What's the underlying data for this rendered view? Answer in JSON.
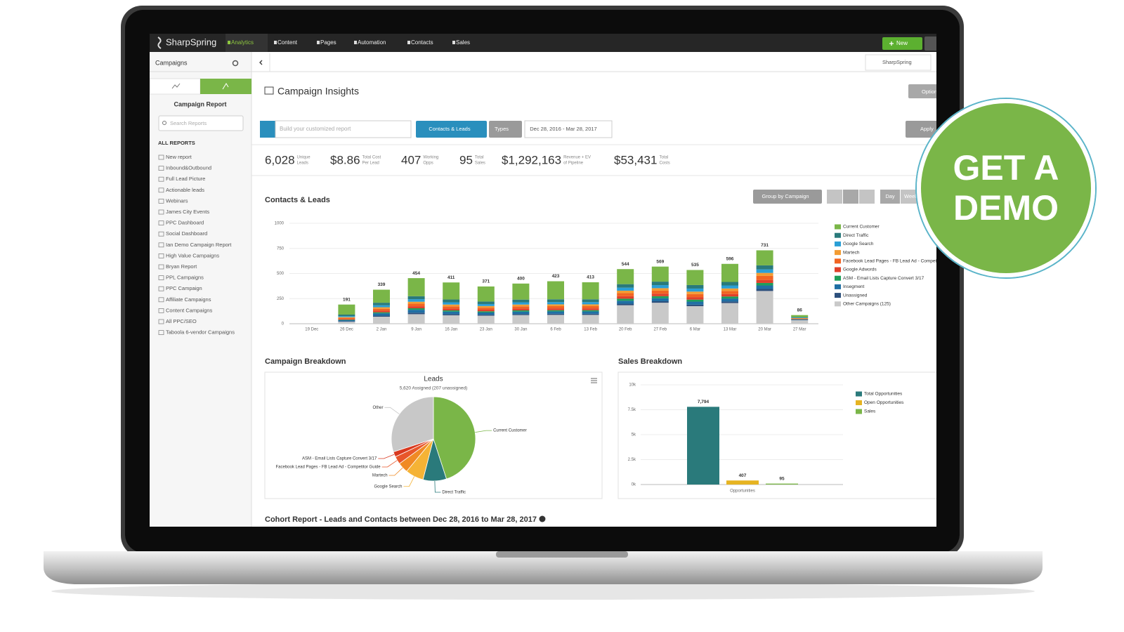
{
  "nav": {
    "brand": "SharpSpring",
    "items": [
      "Analytics",
      "Content",
      "Pages",
      "Automation",
      "Contacts",
      "Sales"
    ],
    "new_button": "New"
  },
  "sidebar": {
    "title": "Campaigns",
    "report_title": "Campaign Report",
    "search_placeholder": "Search Reports",
    "section": "ALL REPORTS",
    "reports": [
      "New report",
      "Inbound&Outbound",
      "Full Lead Picture",
      "Actionable leads",
      "Webinars",
      "James City Events",
      "PPC Dashboard",
      "Social Dashboard",
      "Ian Demo Campaign Report",
      "High Value Campaigns",
      "Bryan Report",
      "PPL Campaigns",
      "PPC Campaign",
      "Affiliate Campaigns",
      "Content Campaigns",
      "All PPC/SEO",
      "Taboola 6-vendor Campaigns"
    ]
  },
  "account": "SharpSpring",
  "header": {
    "title": "Campaign Insights",
    "options": "Options"
  },
  "toolbar": {
    "report_placeholder": "Build your customized report",
    "type": "Contacts & Leads",
    "types": "Types",
    "date_range": "Dec 28, 2016 - Mar 28, 2017",
    "apply": "Apply"
  },
  "kpis": [
    {
      "value": "6,028",
      "label": [
        "Unique",
        "Leads"
      ]
    },
    {
      "value": "$8.86",
      "label": [
        "Total Cost",
        "Per Lead"
      ]
    },
    {
      "value": "407",
      "label": [
        "Working",
        "Opps"
      ]
    },
    {
      "value": "95",
      "label": [
        "Total",
        "Sales"
      ]
    },
    {
      "value": "$1,292,163",
      "label": [
        "Revenue + EV",
        "of Pipeline"
      ]
    },
    {
      "value": "$53,431",
      "label": [
        "Total",
        "Costs"
      ]
    }
  ],
  "chart_controls": {
    "group_by": "Group by Campaign",
    "day": "Day",
    "week": "Week"
  },
  "chart_data": [
    {
      "type": "stacked_bar",
      "title": "Contacts & Leads",
      "categories": [
        "19 Dec",
        "26 Dec",
        "2 Jan",
        "9 Jan",
        "16 Jan",
        "23 Jan",
        "30 Jan",
        "6 Feb",
        "13 Feb",
        "20 Feb",
        "27 Feb",
        "6 Mar",
        "13 Mar",
        "20 Mar",
        "27 Mar"
      ],
      "ylim": [
        0,
        1000
      ],
      "yticks": [
        0,
        250,
        500,
        750,
        1000
      ],
      "grid": true,
      "total_labels": [
        null,
        191,
        339,
        454,
        411,
        371,
        400,
        423,
        413,
        544,
        569,
        535,
        596,
        731,
        86
      ],
      "series": [
        {
          "name": "Current Customer",
          "color": "#7ab648",
          "values": [
            0,
            100,
            130,
            180,
            170,
            150,
            160,
            180,
            170,
            150,
            150,
            150,
            180,
            150,
            20
          ]
        },
        {
          "name": "Direct Traffic",
          "color": "#2a7a7b",
          "values": [
            0,
            15,
            25,
            30,
            28,
            25,
            27,
            28,
            28,
            35,
            35,
            35,
            35,
            40,
            5
          ]
        },
        {
          "name": "Google Search",
          "color": "#2a9fd6",
          "values": [
            0,
            10,
            20,
            25,
            22,
            20,
            22,
            22,
            22,
            30,
            30,
            30,
            30,
            35,
            5
          ]
        },
        {
          "name": "Martech",
          "color": "#f39c33",
          "values": [
            0,
            8,
            15,
            20,
            18,
            16,
            18,
            18,
            18,
            25,
            25,
            25,
            25,
            30,
            3
          ]
        },
        {
          "name": "Facebook Lead Pages - FB Lead Ad - Competitor Guide",
          "color": "#f26522",
          "values": [
            0,
            10,
            20,
            25,
            22,
            20,
            22,
            22,
            22,
            30,
            30,
            30,
            30,
            40,
            5
          ]
        },
        {
          "name": "Google Adwords",
          "color": "#e0402a",
          "values": [
            0,
            8,
            15,
            20,
            18,
            16,
            18,
            18,
            18,
            25,
            25,
            25,
            25,
            30,
            3
          ]
        },
        {
          "name": "ASM - Email Lists Capture Convert 3/17",
          "color": "#1e9e5a",
          "values": [
            0,
            5,
            10,
            15,
            12,
            12,
            12,
            12,
            12,
            20,
            20,
            20,
            20,
            25,
            2
          ]
        },
        {
          "name": "Insegment",
          "color": "#1f6fa4",
          "values": [
            0,
            10,
            24,
            29,
            25,
            22,
            24,
            24,
            24,
            30,
            30,
            30,
            30,
            35,
            5
          ]
        },
        {
          "name": "Unassigned",
          "color": "#2c4f7c",
          "values": [
            0,
            5,
            10,
            15,
            12,
            10,
            11,
            11,
            11,
            15,
            15,
            15,
            15,
            20,
            3
          ]
        },
        {
          "name": "Other Campaigns (125)",
          "color": "#c9c9c9",
          "values": [
            0,
            20,
            70,
            95,
            84,
            80,
            86,
            88,
            88,
            184,
            209,
            175,
            206,
            326,
            35
          ]
        }
      ]
    },
    {
      "type": "pie",
      "section_title": "Campaign Breakdown",
      "title": "Leads",
      "subtitle": "5,620 Assigned (207 unassigned)",
      "categories": [
        "Current Customer",
        "Direct Traffic",
        "Google Search",
        "Martech",
        "Facebook Lead Pages - FB Lead Ad - Competitor Guide",
        "ASM - Email Lists Capture Convert 3/17",
        "Other"
      ],
      "values": [
        45,
        9,
        7,
        4,
        3,
        2,
        30
      ],
      "colors": [
        "#7ab648",
        "#2a7a7b",
        "#f5b335",
        "#f08a24",
        "#e8562a",
        "#d9391f",
        "#c8c8c8"
      ]
    },
    {
      "type": "bar",
      "title": "Sales Breakdown",
      "categories": [
        "Opportunities"
      ],
      "ylim": [
        0,
        10000
      ],
      "yticks": [
        {
          "value": 0,
          "label": "0k"
        },
        {
          "value": 2500,
          "label": "2.5k"
        },
        {
          "value": 5000,
          "label": "5k"
        },
        {
          "value": 7500,
          "label": "7.5k"
        },
        {
          "value": 10000,
          "label": "10k"
        }
      ],
      "grid": true,
      "series": [
        {
          "name": "Total Opportunities",
          "color": "#2a7a7b",
          "values": [
            7794
          ],
          "value_labels": [
            "7,794"
          ]
        },
        {
          "name": "Open Opportunities",
          "color": "#e6b422",
          "values": [
            407
          ]
        },
        {
          "name": "Sales",
          "color": "#7ab648",
          "values": [
            95
          ]
        }
      ]
    }
  ],
  "cohort_title": "Cohort Report - Leads and Contacts between Dec 28, 2016 to Mar 28, 2017",
  "cta": [
    "GET A",
    "DEMO"
  ]
}
